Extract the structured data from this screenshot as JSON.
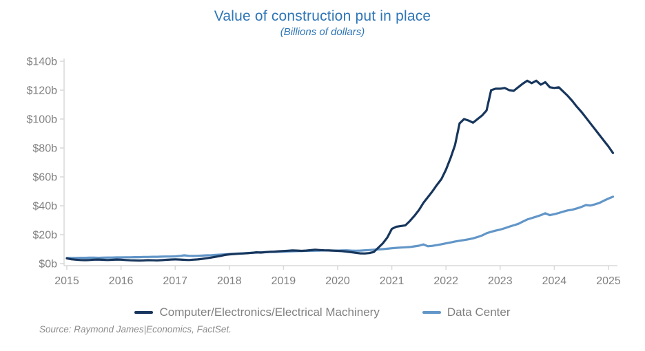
{
  "title": "Value of construction put in place",
  "subtitle": "(Billions of dollars)",
  "source_note": "Source: Raymond James|Economics, FactSet.",
  "colors": {
    "title_blue": "#2E75B6",
    "axis_line": "#D9D9D9",
    "axis_label_gray": "#808080",
    "legend_text_gray": "#7F7F7F",
    "source_gray": "#8C8C8C"
  },
  "chart_data": {
    "type": "line",
    "title": "Value of construction put in place",
    "subtitle": "(Billions of dollars)",
    "x_unit": "month",
    "x_start": "2015-01",
    "x_end": "2025-02",
    "x_tick_labels": [
      "2015",
      "2016",
      "2017",
      "2018",
      "2019",
      "2020",
      "2021",
      "2022",
      "2023",
      "2024",
      "2025"
    ],
    "y_ticks": [
      {
        "value": 0,
        "label": "$0b"
      },
      {
        "value": 20,
        "label": "$20b"
      },
      {
        "value": 40,
        "label": "$40b"
      },
      {
        "value": 60,
        "label": "$60b"
      },
      {
        "value": 80,
        "label": "$80b"
      },
      {
        "value": 100,
        "label": "$100b"
      },
      {
        "value": 120,
        "label": "$120b"
      },
      {
        "value": 140,
        "label": "$140b"
      }
    ],
    "ylim": [
      0,
      140
    ],
    "grid": false,
    "legend_position": "bottom",
    "series": [
      {
        "name": "Computer/Electronics/Electrical Machinery",
        "color": "#17365D",
        "values": [
          3.6,
          3.0,
          2.7,
          2.5,
          2.4,
          2.5,
          2.7,
          2.8,
          2.6,
          2.5,
          2.6,
          2.8,
          2.7,
          2.5,
          2.3,
          2.2,
          2.1,
          2.2,
          2.4,
          2.3,
          2.2,
          2.4,
          2.6,
          2.8,
          2.9,
          2.8,
          2.6,
          2.5,
          2.7,
          2.9,
          3.3,
          3.7,
          4.2,
          4.7,
          5.3,
          6.0,
          6.4,
          6.6,
          6.8,
          7.0,
          7.2,
          7.5,
          7.8,
          7.6,
          7.9,
          8.2,
          8.3,
          8.5,
          8.7,
          8.9,
          9.1,
          9.0,
          8.8,
          9.0,
          9.3,
          9.6,
          9.4,
          9.2,
          9.1,
          9.0,
          8.8,
          8.6,
          8.3,
          7.9,
          7.5,
          7.1,
          7.0,
          7.3,
          8.0,
          11.0,
          14.0,
          18.0,
          24.0,
          25.5,
          26.0,
          26.5,
          29.5,
          33.0,
          37.0,
          42.0,
          46.0,
          50.0,
          54.5,
          58.5,
          65.0,
          73.0,
          82.0,
          97.0,
          100.0,
          99.0,
          97.5,
          100.0,
          102.5,
          106.0,
          120.0,
          121.0,
          121.0,
          121.5,
          120.0,
          119.5,
          122.0,
          124.5,
          126.5,
          124.8,
          126.5,
          123.8,
          125.5,
          122.0,
          121.5,
          122.0,
          119.0,
          116.0,
          112.5,
          108.5,
          105.0,
          101.0,
          97.0,
          93.0,
          89.0,
          85.0,
          81.0,
          76.5
        ]
      },
      {
        "name": "Data Center",
        "color": "#6296C8",
        "values": [
          3.8,
          3.9,
          3.9,
          4.0,
          4.0,
          4.1,
          4.1,
          4.0,
          4.1,
          4.2,
          4.2,
          4.3,
          4.3,
          4.4,
          4.4,
          4.5,
          4.5,
          4.6,
          4.6,
          4.7,
          4.7,
          4.8,
          4.9,
          4.9,
          5.0,
          5.3,
          5.7,
          5.4,
          5.3,
          5.4,
          5.5,
          5.7,
          5.8,
          6.0,
          6.2,
          6.4,
          6.6,
          6.8,
          7.0,
          7.1,
          7.3,
          7.5,
          7.6,
          7.8,
          7.9,
          8.0,
          8.1,
          8.2,
          8.3,
          8.4,
          8.5,
          8.6,
          8.7,
          8.8,
          8.8,
          8.9,
          9.0,
          9.1,
          9.1,
          9.0,
          9.0,
          9.1,
          9.2,
          9.0,
          8.9,
          9.0,
          9.2,
          9.4,
          9.6,
          9.8,
          10.0,
          10.3,
          10.6,
          10.9,
          11.1,
          11.3,
          11.5,
          11.9,
          12.4,
          13.3,
          12.0,
          12.3,
          12.8,
          13.4,
          14.0,
          14.6,
          15.3,
          15.8,
          16.3,
          16.8,
          17.5,
          18.4,
          19.5,
          21.0,
          22.0,
          22.8,
          23.5,
          24.5,
          25.5,
          26.5,
          27.5,
          29.0,
          30.5,
          31.5,
          32.5,
          33.5,
          34.8,
          33.5,
          34.2,
          35.0,
          36.0,
          36.8,
          37.3,
          38.2,
          39.2,
          40.5,
          40.2,
          41.0,
          42.0,
          43.5,
          45.0,
          46.3
        ]
      }
    ]
  }
}
